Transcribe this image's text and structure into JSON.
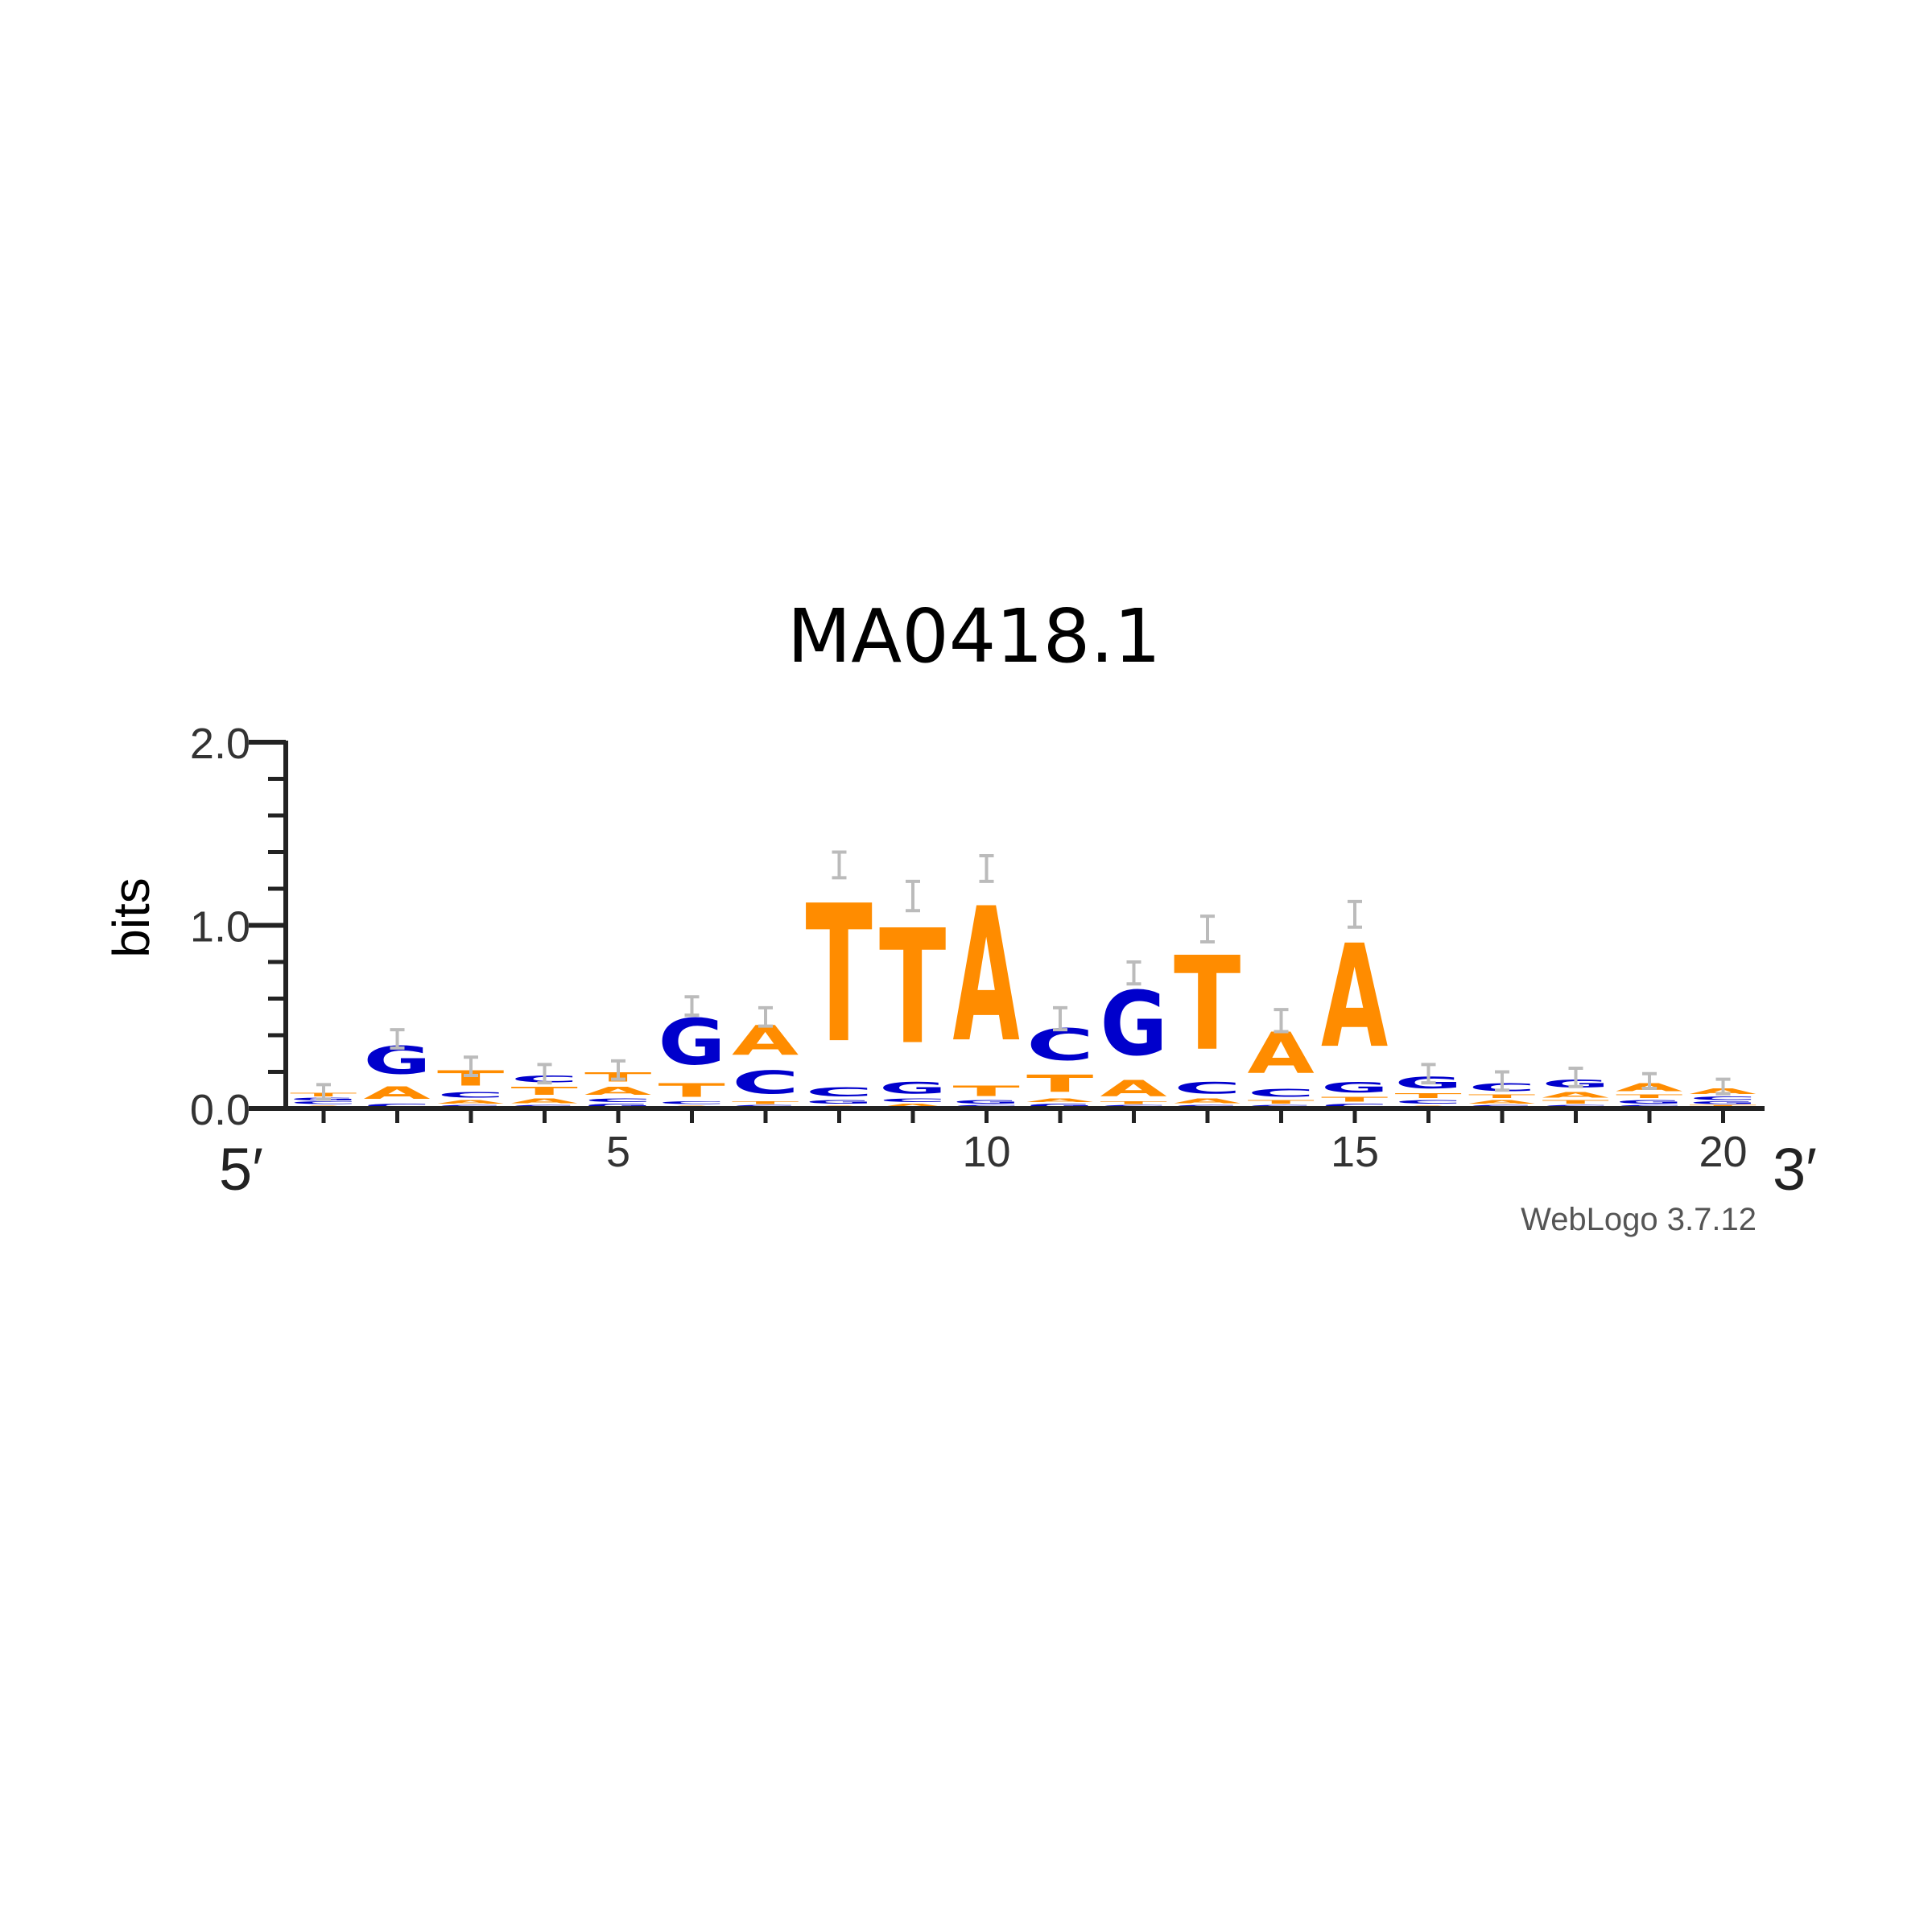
{
  "chart_data": {
    "type": "sequence-logo",
    "title": "MA0418.1",
    "ylabel": "bits",
    "ylim": [
      0,
      2
    ],
    "yticks": [
      "0.0",
      "1.0",
      "2.0"
    ],
    "xticks": [
      5,
      10,
      15,
      20
    ],
    "positions": 20,
    "five_prime_label": "5′",
    "three_prime_label": "3′",
    "credit": "WebLogo 3.7.12",
    "colors": {
      "A": "#ff8c00",
      "T": "#ff8c00",
      "C": "#0000cc",
      "G": "#0000cc"
    },
    "columns": [
      {
        "pos": 1,
        "letters": [
          [
            "A",
            0.02
          ],
          [
            "C",
            0.02
          ],
          [
            "G",
            0.02
          ],
          [
            "T",
            0.03
          ]
        ],
        "err": 0.04
      },
      {
        "pos": 2,
        "letters": [
          [
            "C",
            0.03
          ],
          [
            "A",
            0.11
          ],
          [
            "G",
            0.24
          ]
        ],
        "err": 0.05
      },
      {
        "pos": 3,
        "letters": [
          [
            "G",
            0.02
          ],
          [
            "A",
            0.03
          ],
          [
            "C",
            0.05
          ],
          [
            "T",
            0.13
          ]
        ],
        "err": 0.05
      },
      {
        "pos": 4,
        "letters": [
          [
            "G",
            0.02
          ],
          [
            "A",
            0.04
          ],
          [
            "T",
            0.07
          ],
          [
            "C",
            0.06
          ]
        ],
        "err": 0.05
      },
      {
        "pos": 5,
        "letters": [
          [
            "G",
            0.03
          ],
          [
            "C",
            0.03
          ],
          [
            "A",
            0.07
          ],
          [
            "T",
            0.08
          ]
        ],
        "err": 0.05
      },
      {
        "pos": 6,
        "letters": [
          [
            "A",
            0.02
          ],
          [
            "C",
            0.02
          ],
          [
            "T",
            0.12
          ],
          [
            "G",
            0.4
          ]
        ],
        "err": 0.05
      },
      {
        "pos": 7,
        "letters": [
          [
            "G",
            0.02
          ],
          [
            "T",
            0.02
          ],
          [
            "C",
            0.2
          ],
          [
            "A",
            0.26
          ]
        ],
        "err": 0.05
      },
      {
        "pos": 8,
        "letters": [
          [
            "A",
            0.02
          ],
          [
            "G",
            0.03
          ],
          [
            "C",
            0.08
          ],
          [
            "T",
            1.2
          ]
        ],
        "err": 0.07
      },
      {
        "pos": 9,
        "letters": [
          [
            "A",
            0.03
          ],
          [
            "C",
            0.03
          ],
          [
            "G",
            0.1
          ],
          [
            "T",
            1.0
          ]
        ],
        "err": 0.08
      },
      {
        "pos": 10,
        "letters": [
          [
            "C",
            0.02
          ],
          [
            "G",
            0.03
          ],
          [
            "T",
            0.09
          ],
          [
            "A",
            1.17
          ]
        ],
        "err": 0.07
      },
      {
        "pos": 11,
        "letters": [
          [
            "G",
            0.03
          ],
          [
            "A",
            0.03
          ],
          [
            "T",
            0.15
          ],
          [
            "C",
            0.28
          ]
        ],
        "err": 0.06
      },
      {
        "pos": 12,
        "letters": [
          [
            "C",
            0.02
          ],
          [
            "T",
            0.02
          ],
          [
            "A",
            0.14
          ],
          [
            "G",
            0.56
          ]
        ],
        "err": 0.06
      },
      {
        "pos": 13,
        "letters": [
          [
            "G",
            0.02
          ],
          [
            "A",
            0.04
          ],
          [
            "C",
            0.1
          ],
          [
            "T",
            0.82
          ]
        ],
        "err": 0.07
      },
      {
        "pos": 14,
        "letters": [
          [
            "G",
            0.02
          ],
          [
            "T",
            0.03
          ],
          [
            "C",
            0.07
          ],
          [
            "A",
            0.36
          ]
        ],
        "err": 0.06
      },
      {
        "pos": 15,
        "letters": [
          [
            "C",
            0.03
          ],
          [
            "T",
            0.04
          ],
          [
            "G",
            0.09
          ],
          [
            "A",
            0.9
          ]
        ],
        "err": 0.07
      },
      {
        "pos": 16,
        "letters": [
          [
            "A",
            0.02
          ],
          [
            "C",
            0.03
          ],
          [
            "T",
            0.04
          ],
          [
            "G",
            0.1
          ]
        ],
        "err": 0.05
      },
      {
        "pos": 17,
        "letters": [
          [
            "G",
            0.02
          ],
          [
            "A",
            0.03
          ],
          [
            "T",
            0.03
          ],
          [
            "C",
            0.07
          ]
        ],
        "err": 0.05
      },
      {
        "pos": 18,
        "letters": [
          [
            "C",
            0.02
          ],
          [
            "T",
            0.03
          ],
          [
            "A",
            0.05
          ],
          [
            "G",
            0.07
          ]
        ],
        "err": 0.05
      },
      {
        "pos": 19,
        "letters": [
          [
            "C",
            0.02
          ],
          [
            "G",
            0.03
          ],
          [
            "T",
            0.03
          ],
          [
            "A",
            0.07
          ]
        ],
        "err": 0.04
      },
      {
        "pos": 20,
        "letters": [
          [
            "T",
            0.02
          ],
          [
            "G",
            0.02
          ],
          [
            "C",
            0.03
          ],
          [
            "A",
            0.05
          ]
        ],
        "err": 0.04
      }
    ]
  }
}
